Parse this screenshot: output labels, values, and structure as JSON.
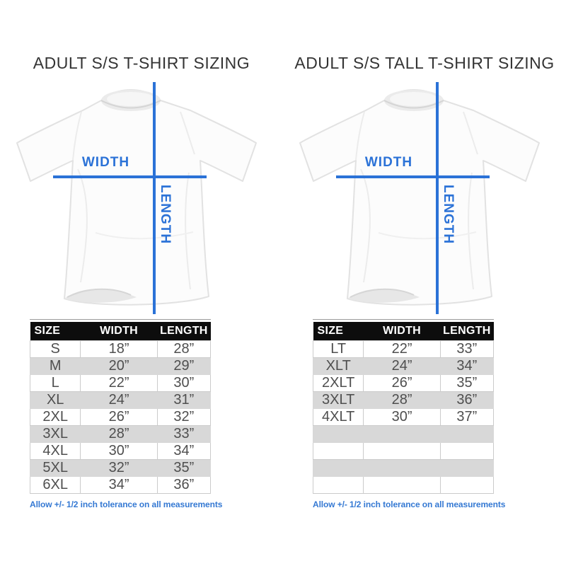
{
  "colors": {
    "accent_blue": "#2b72d7",
    "table_header_bg": "#0d0d0d",
    "row_stripe_gray": "#d8d8d8",
    "note_blue": "#3579d3",
    "title_text": "#343434"
  },
  "diagram_labels": {
    "width": "WIDTH",
    "length": "LENGTH"
  },
  "chart_data": [
    {
      "type": "table",
      "title": "ADULT S/S T-SHIRT SIZING",
      "columns": [
        "SIZE",
        "WIDTH",
        "LENGTH"
      ],
      "rows": [
        [
          "S",
          "18”",
          "28”"
        ],
        [
          "M",
          "20”",
          "29”"
        ],
        [
          "L",
          "22”",
          "30”"
        ],
        [
          "XL",
          "24”",
          "31”"
        ],
        [
          "2XL",
          "26”",
          "32”"
        ],
        [
          "3XL",
          "28”",
          "33”"
        ],
        [
          "4XL",
          "30”",
          "34”"
        ],
        [
          "5XL",
          "32”",
          "35”"
        ],
        [
          "6XL",
          "34”",
          "36”"
        ]
      ],
      "note": "Allow +/- 1/2 inch tolerance on all measurements"
    },
    {
      "type": "table",
      "title": "ADULT S/S TALL T-SHIRT SIZING",
      "columns": [
        "SIZE",
        "WIDTH",
        "LENGTH"
      ],
      "rows": [
        [
          "LT",
          "22”",
          "33”"
        ],
        [
          "XLT",
          "24”",
          "34”"
        ],
        [
          "2XLT",
          "26”",
          "35”"
        ],
        [
          "3XLT",
          "28”",
          "36”"
        ],
        [
          "4XLT",
          "30”",
          "37”"
        ],
        [
          "",
          "",
          ""
        ],
        [
          "",
          "",
          ""
        ],
        [
          "",
          "",
          ""
        ],
        [
          "",
          "",
          ""
        ]
      ],
      "note": "Allow +/- 1/2 inch tolerance on all measurements"
    }
  ]
}
